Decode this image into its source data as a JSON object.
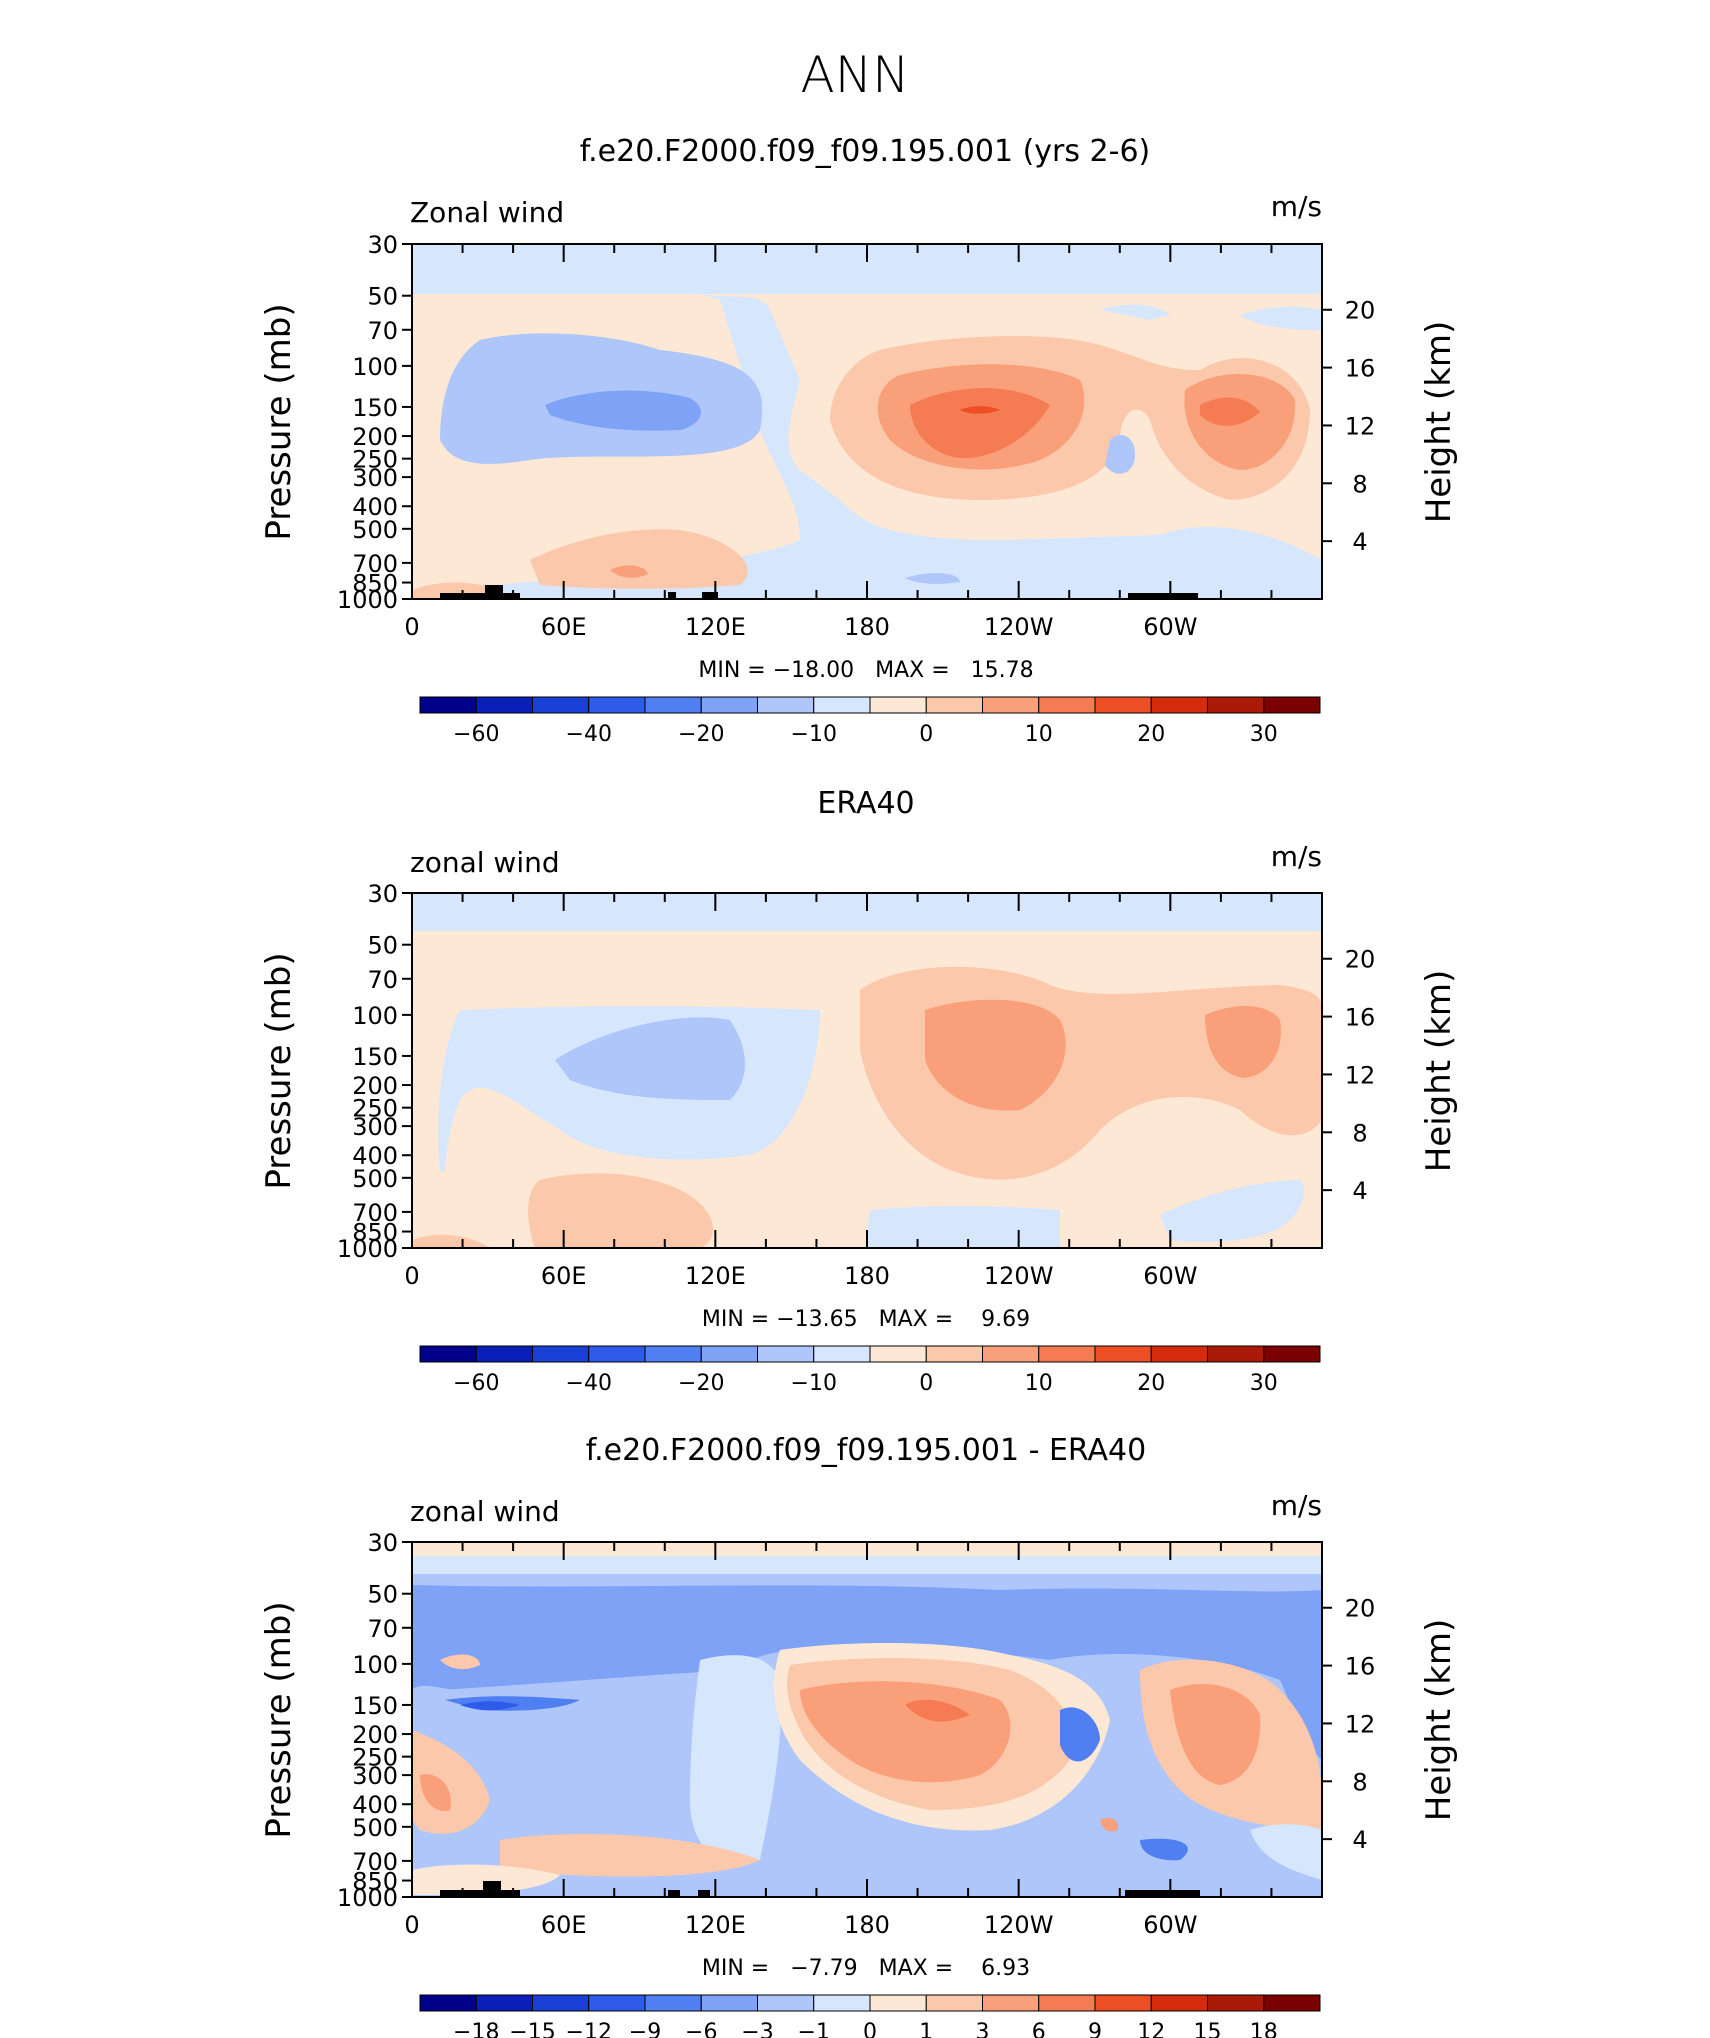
{
  "figure_title": "ANN",
  "panels": [
    {
      "title": "f.e20.F2000.f09_f09.195.001 (yrs 2-6)",
      "variable": "Zonal wind",
      "units": "m/s",
      "stats": "MIN = −18.00   MAX =   15.78",
      "colorbar_levels": [
        "−60",
        "−40",
        "−20",
        "−10",
        "0",
        "10",
        "20",
        "30"
      ]
    },
    {
      "title": "ERA40",
      "variable": "zonal wind",
      "units": "m/s",
      "stats": "MIN = −13.65   MAX =    9.69",
      "colorbar_levels": [
        "−60",
        "−40",
        "−20",
        "−10",
        "0",
        "10",
        "20",
        "30"
      ]
    },
    {
      "title": "f.e20.F2000.f09_f09.195.001 - ERA40",
      "variable": "zonal wind",
      "units": "m/s",
      "stats": "MIN =   −7.79   MAX =    6.93",
      "colorbar_levels": [
        "−18",
        "−15",
        "−12",
        "−9",
        "−6",
        "−3",
        "−1",
        "0",
        "1",
        "3",
        "6",
        "9",
        "12",
        "15",
        "18"
      ]
    }
  ],
  "axes": {
    "ylabel_left": "Pressure (mb)",
    "ylabel_right": "Height (km)",
    "pressure_ticks": [
      "30",
      "50",
      "70",
      "100",
      "150",
      "200",
      "250",
      "300",
      "400",
      "500",
      "700",
      "850",
      "1000"
    ],
    "height_ticks": [
      "20",
      "16",
      "12",
      "8",
      "4"
    ],
    "x_ticks": [
      "0",
      "60E",
      "120E",
      "180",
      "120W",
      "60W"
    ]
  },
  "colors": {
    "full_field_palette": [
      "#00008b",
      "#0a1fb8",
      "#1a3fd6",
      "#2e5bea",
      "#4f7ff0",
      "#7ea2f6",
      "#aec6fa",
      "#d6e6fd",
      "#fde8d6",
      "#fcc8ab",
      "#f9a07a",
      "#f47b52",
      "#ee4e23",
      "#d42b0c",
      "#ab1a07",
      "#7c0002"
    ],
    "diff_palette": [
      "#00008b",
      "#0a1fb8",
      "#1a3fd6",
      "#2e5bea",
      "#4f7ff0",
      "#7ea2f6",
      "#aec6fa",
      "#d6e6fd",
      "#fde8d6",
      "#fcc8ab",
      "#f9a07a",
      "#f47b52",
      "#ee4e23",
      "#d42b0c",
      "#ab1a07",
      "#7c0002"
    ]
  },
  "chart_data": [
    {
      "type": "heatmap",
      "title": "f.e20.F2000.f09_f09.195.001 (yrs 2-6)",
      "xlabel": "",
      "ylabel": "Pressure (mb)",
      "y2label": "Height (km)",
      "x_range": [
        0,
        360
      ],
      "y_range_mb": [
        1000,
        30
      ],
      "y_scale": "log",
      "min": -18.0,
      "max": 15.78,
      "contour_levels": [
        -60,
        -40,
        -20,
        -10,
        0,
        10,
        20,
        30
      ]
    },
    {
      "type": "heatmap",
      "title": "ERA40",
      "xlabel": "",
      "ylabel": "Pressure (mb)",
      "y2label": "Height (km)",
      "x_range": [
        0,
        360
      ],
      "y_range_mb": [
        1000,
        30
      ],
      "y_scale": "log",
      "min": -13.65,
      "max": 9.69,
      "contour_levels": [
        -60,
        -40,
        -20,
        -10,
        0,
        10,
        20,
        30
      ]
    },
    {
      "type": "heatmap",
      "title": "f.e20.F2000.f09_f09.195.001 - ERA40",
      "xlabel": "",
      "ylabel": "Pressure (mb)",
      "y2label": "Height (km)",
      "x_range": [
        0,
        360
      ],
      "y_range_mb": [
        1000,
        30
      ],
      "y_scale": "log",
      "min": -7.79,
      "max": 6.93,
      "contour_levels": [
        -18,
        -15,
        -12,
        -9,
        -6,
        -3,
        -1,
        0,
        1,
        3,
        6,
        9,
        12,
        15,
        18
      ]
    }
  ]
}
